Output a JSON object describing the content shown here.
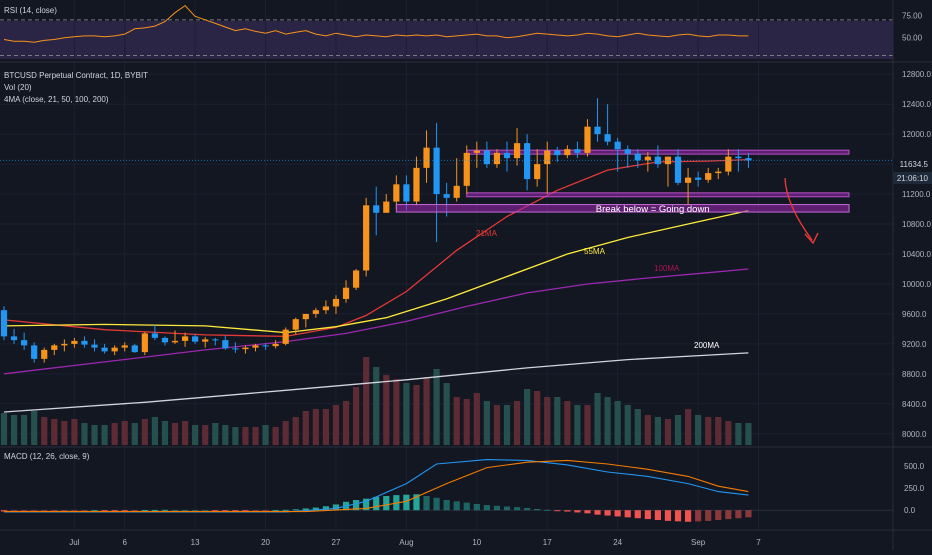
{
  "header": {
    "rsi_label": "RSI (14, close)",
    "symbol_label": "BTCUSD Perpetual Contract, 1D, BYBIT",
    "vol_label": "Vol (20)",
    "ma_label": "4MA (close, 21, 50, 100, 200)",
    "macd_label": "MACD (12, 26, close, 9)"
  },
  "price_badge": {
    "price": "11634.5",
    "countdown": "21:06:10"
  },
  "annotations": {
    "zone_text": "Break below = Going down",
    "ma21": "21MA",
    "ma55": "55MA",
    "ma100": "100MA",
    "ma200": "200MA"
  },
  "colors": {
    "bg": "#131722",
    "up": "#f7931a",
    "down": "#2196f3",
    "vol_up": "#5d2b33",
    "vol_down": "#26504d",
    "ma21": "#e53935",
    "ma55": "#ffeb3b",
    "ma100": "#9c27b0",
    "ma200": "#d1d4dc",
    "zone": "#9c27b0",
    "macd_line": "#2196f3",
    "signal_line": "#f57c00",
    "hist_pos": "#26a69a",
    "hist_neg": "#ef5350",
    "arrow": "#e53935"
  },
  "chart_data": [
    {
      "type": "candlestick",
      "title": "BTCUSD Perpetual Contract, 1D, BYBIT",
      "x_tick_labels": [
        "Jul",
        "6",
        "13",
        "20",
        "27",
        "Aug",
        "10",
        "17",
        "24",
        "Sep",
        "7"
      ],
      "y_tick_labels": [
        "8000.0",
        "8400.0",
        "8800.0",
        "9200.0",
        "9600.0",
        "10000.0",
        "10400.0",
        "10800.0",
        "11200.0",
        "11600.0",
        "12000.0",
        "12400.0",
        "12800.0"
      ],
      "y_range": [
        7850,
        12950
      ],
      "start_date": "2020-06-24",
      "ohlc": [
        [
          9650,
          9700,
          9250,
          9300
        ],
        [
          9300,
          9400,
          9200,
          9250
        ],
        [
          9250,
          9350,
          9120,
          9180
        ],
        [
          9180,
          9220,
          8950,
          9000
        ],
        [
          9000,
          9150,
          8950,
          9120
        ],
        [
          9120,
          9200,
          9050,
          9180
        ],
        [
          9180,
          9260,
          9100,
          9200
        ],
        [
          9200,
          9280,
          9150,
          9240
        ],
        [
          9240,
          9300,
          9150,
          9190
        ],
        [
          9190,
          9260,
          9100,
          9150
        ],
        [
          9150,
          9200,
          9070,
          9100
        ],
        [
          9100,
          9180,
          9050,
          9150
        ],
        [
          9150,
          9220,
          9100,
          9180
        ],
        [
          9180,
          9200,
          9080,
          9090
        ],
        [
          9090,
          9360,
          9050,
          9340
        ],
        [
          9340,
          9450,
          9250,
          9280
        ],
        [
          9280,
          9300,
          9180,
          9220
        ],
        [
          9220,
          9380,
          9200,
          9240
        ],
        [
          9240,
          9350,
          9160,
          9300
        ],
        [
          9300,
          9330,
          9200,
          9230
        ],
        [
          9230,
          9290,
          9150,
          9260
        ],
        [
          9260,
          9280,
          9180,
          9250
        ],
        [
          9250,
          9310,
          9120,
          9140
        ],
        [
          9140,
          9220,
          9080,
          9130
        ],
        [
          9130,
          9180,
          9070,
          9150
        ],
        [
          9150,
          9200,
          9100,
          9180
        ],
        [
          9180,
          9210,
          9120,
          9170
        ],
        [
          9170,
          9250,
          9140,
          9200
        ],
        [
          9200,
          9420,
          9180,
          9390
        ],
        [
          9390,
          9550,
          9330,
          9530
        ],
        [
          9530,
          9600,
          9420,
          9600
        ],
        [
          9600,
          9680,
          9550,
          9650
        ],
        [
          9650,
          9780,
          9600,
          9700
        ],
        [
          9700,
          9850,
          9600,
          9800
        ],
        [
          9800,
          10050,
          9750,
          9950
        ],
        [
          9950,
          10200,
          9920,
          10180
        ],
        [
          10180,
          11150,
          10100,
          11050
        ],
        [
          11050,
          11300,
          10650,
          10950
        ],
        [
          10950,
          11200,
          10950,
          11100
        ],
        [
          11100,
          11450,
          11000,
          11330
        ],
        [
          11330,
          11450,
          10980,
          11100
        ],
        [
          11100,
          11700,
          11050,
          11550
        ],
        [
          11550,
          12050,
          11350,
          11820
        ],
        [
          11820,
          12150,
          10560,
          11200
        ],
        [
          11200,
          11350,
          10900,
          11150
        ],
        [
          11150,
          11680,
          11100,
          11310
        ],
        [
          11310,
          11850,
          11200,
          11750
        ],
        [
          11750,
          11900,
          11550,
          11780
        ],
        [
          11780,
          11900,
          11550,
          11600
        ],
        [
          11600,
          11800,
          11550,
          11750
        ],
        [
          11750,
          11900,
          11500,
          11680
        ],
        [
          11680,
          12080,
          11580,
          11880
        ],
        [
          11880,
          12000,
          11250,
          11400
        ],
        [
          11400,
          11800,
          11300,
          11600
        ],
        [
          11600,
          11900,
          11200,
          11780
        ],
        [
          11780,
          11830,
          11630,
          11720
        ],
        [
          11720,
          11850,
          11680,
          11800
        ],
        [
          11800,
          11900,
          11680,
          11750
        ],
        [
          11750,
          12200,
          11700,
          12100
        ],
        [
          12100,
          12480,
          11900,
          12000
        ],
        [
          12000,
          12400,
          11850,
          11900
        ],
        [
          11900,
          11950,
          11500,
          11800
        ],
        [
          11800,
          11850,
          11550,
          11740
        ],
        [
          11740,
          11800,
          11550,
          11650
        ],
        [
          11650,
          11760,
          11500,
          11700
        ],
        [
          11700,
          11850,
          11550,
          11600
        ],
        [
          11600,
          11700,
          11300,
          11700
        ],
        [
          11700,
          11800,
          11320,
          11350
        ],
        [
          11350,
          11550,
          11050,
          11420
        ],
        [
          11420,
          11500,
          11300,
          11390
        ],
        [
          11390,
          11550,
          11350,
          11480
        ],
        [
          11480,
          11550,
          11400,
          11500
        ],
        [
          11500,
          11800,
          11450,
          11700
        ],
        [
          11700,
          11800,
          11500,
          11680
        ],
        [
          11680,
          11750,
          11550,
          11650
        ]
      ],
      "volume_scale_max": 100,
      "volume": [
        32,
        30,
        30,
        34,
        28,
        26,
        24,
        26,
        22,
        20,
        20,
        22,
        24,
        22,
        26,
        28,
        24,
        22,
        24,
        20,
        20,
        22,
        20,
        18,
        18,
        18,
        20,
        18,
        24,
        28,
        34,
        36,
        36,
        40,
        44,
        58,
        88,
        78,
        70,
        66,
        62,
        60,
        68,
        76,
        62,
        48,
        46,
        52,
        44,
        40,
        40,
        44,
        56,
        54,
        48,
        48,
        44,
        40,
        40,
        52,
        48,
        44,
        40,
        36,
        30,
        28,
        26,
        30,
        36,
        30,
        28,
        28,
        24,
        22,
        22
      ],
      "moving_averages": [
        {
          "name": "21MA",
          "values": [
            [
              0,
              9520
            ],
            [
              10,
              9390
            ],
            [
              20,
              9320
            ],
            [
              28,
              9300
            ],
            [
              33,
              9420
            ],
            [
              36,
              9580
            ],
            [
              40,
              9900
            ],
            [
              45,
              10450
            ],
            [
              50,
              10900
            ],
            [
              55,
              11250
            ],
            [
              60,
              11520
            ],
            [
              65,
              11630
            ],
            [
              70,
              11640
            ],
            [
              74,
              11660
            ]
          ]
        },
        {
          "name": "55MA",
          "values": [
            [
              0,
              9440
            ],
            [
              10,
              9460
            ],
            [
              20,
              9440
            ],
            [
              28,
              9350
            ],
            [
              33,
              9430
            ],
            [
              38,
              9550
            ],
            [
              44,
              9800
            ],
            [
              50,
              10100
            ],
            [
              56,
              10400
            ],
            [
              62,
              10620
            ],
            [
              68,
              10800
            ],
            [
              74,
              10980
            ]
          ]
        },
        {
          "name": "100MA",
          "values": [
            [
              0,
              8800
            ],
            [
              10,
              8960
            ],
            [
              20,
              9120
            ],
            [
              28,
              9230
            ],
            [
              34,
              9340
            ],
            [
              40,
              9500
            ],
            [
              46,
              9700
            ],
            [
              52,
              9880
            ],
            [
              58,
              10000
            ],
            [
              64,
              10080
            ],
            [
              70,
              10150
            ],
            [
              74,
              10200
            ]
          ]
        },
        {
          "name": "200MA",
          "values": [
            [
              0,
              8290
            ],
            [
              14,
              8420
            ],
            [
              28,
              8580
            ],
            [
              40,
              8720
            ],
            [
              52,
              8880
            ],
            [
              62,
              8990
            ],
            [
              70,
              9050
            ],
            [
              74,
              9080
            ]
          ]
        }
      ],
      "horizontal_lines": [
        11760,
        11190
      ],
      "zone": [
        10960,
        11060
      ]
    },
    {
      "type": "line",
      "title": "RSI (14, close)",
      "y_tick_labels": [
        "75.00",
        "50.00"
      ],
      "y_range": [
        25,
        90
      ],
      "overbought": 70,
      "oversold": 30,
      "values": [
        48,
        46,
        46,
        45,
        47,
        48,
        50,
        51,
        52,
        52,
        51,
        52,
        54,
        60,
        61,
        63,
        68,
        78,
        86,
        74,
        70,
        66,
        62,
        58,
        60,
        57,
        55,
        58,
        54,
        56,
        58,
        54,
        52,
        55,
        53,
        51,
        53,
        52,
        51,
        53,
        52,
        53,
        52,
        53,
        51,
        52,
        53,
        54,
        52,
        52,
        50,
        51,
        53,
        55,
        54,
        53,
        52,
        53,
        55,
        54,
        52,
        51,
        53,
        55,
        53,
        52,
        51,
        53,
        54,
        52,
        51,
        53,
        53,
        52,
        52
      ]
    },
    {
      "type": "line",
      "title": "MACD (12, 26, close, 9)",
      "y_tick_labels": [
        "500.0",
        "250.0",
        "0.0"
      ],
      "y_range": [
        -200,
        700
      ],
      "series": [
        {
          "name": "MACD",
          "values": [
            [
              0,
              -20
            ],
            [
              28,
              -20
            ],
            [
              33,
              20
            ],
            [
              36,
              100
            ],
            [
              40,
              300
            ],
            [
              43,
              520
            ],
            [
              48,
              570
            ],
            [
              52,
              560
            ],
            [
              56,
              510
            ],
            [
              60,
              430
            ],
            [
              64,
              380
            ],
            [
              68,
              300
            ],
            [
              71,
              210
            ],
            [
              74,
              170
            ]
          ]
        },
        {
          "name": "Signal",
          "values": [
            [
              0,
              -15
            ],
            [
              30,
              -15
            ],
            [
              36,
              20
            ],
            [
              40,
              100
            ],
            [
              44,
              300
            ],
            [
              48,
              480
            ],
            [
              52,
              540
            ],
            [
              56,
              560
            ],
            [
              60,
              520
            ],
            [
              64,
              460
            ],
            [
              68,
              380
            ],
            [
              71,
              270
            ],
            [
              74,
              210
            ]
          ]
        }
      ],
      "histogram": [
        -15,
        -12,
        -10,
        -8,
        -6,
        -4,
        -3,
        -2,
        -1,
        0,
        -1,
        -2,
        -3,
        -2,
        2,
        3,
        4,
        3,
        2,
        1,
        0,
        -1,
        -2,
        -2,
        -3,
        -2,
        -1,
        1,
        4,
        10,
        20,
        30,
        45,
        65,
        95,
        115,
        130,
        150,
        160,
        170,
        175,
        180,
        160,
        140,
        115,
        100,
        85,
        70,
        58,
        50,
        42,
        35,
        25,
        15,
        5,
        -5,
        -15,
        -25,
        -35,
        -50,
        -60,
        -70,
        -80,
        -90,
        -100,
        -110,
        -120,
        -125,
        -130,
        -125,
        -120,
        -110,
        -100,
        -90,
        -80
      ]
    }
  ]
}
